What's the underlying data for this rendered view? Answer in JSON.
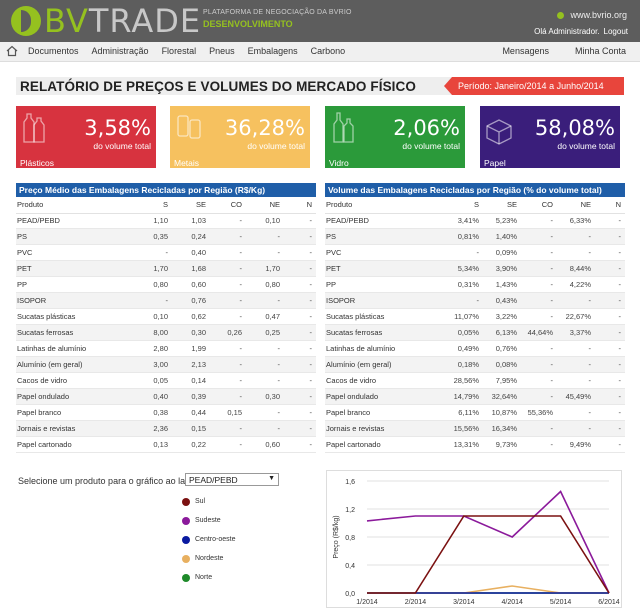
{
  "header": {
    "logo_bv": "BV",
    "logo_trade": "TRADE",
    "tagline": "PLATAFORMA DE NEGOCIAÇÃO DA BVRIO",
    "environment": "DESENVOLVIMENTO",
    "site": "www.bvrio.org",
    "greeting": "Olá Administrador.",
    "logout": "Logout"
  },
  "nav": {
    "items": [
      "Documentos",
      "Administração",
      "Florestal",
      "Pneus",
      "Embalagens",
      "Carbono"
    ],
    "right": [
      "Mensagens",
      "Minha Conta"
    ]
  },
  "report": {
    "title": "RELATÓRIO DE PREÇOS E VOLUMES DO MERCADO FÍSICO",
    "period": "Período: Janeiro/2014 a Junho/2014"
  },
  "cards": [
    {
      "pct": "3,58%",
      "sub": "do volume total",
      "name": "Plásticos",
      "color": "#d7333f",
      "icon": "bottles-icon"
    },
    {
      "pct": "36,28%",
      "sub": "do volume total",
      "name": "Metais",
      "color": "#f6c15f",
      "icon": "cans-icon"
    },
    {
      "pct": "2,06%",
      "sub": "do volume total",
      "name": "Vidro",
      "color": "#2b9a3a",
      "icon": "glass-bottles-icon"
    },
    {
      "pct": "58,08%",
      "sub": "do volume total",
      "name": "Papel",
      "color": "#3a1e7b",
      "icon": "paper-box-icon"
    }
  ],
  "price_table": {
    "title": "Preço Médio das Embalagens Recicladas por Região (R$/Kg)",
    "headers": [
      "Produto",
      "S",
      "SE",
      "CO",
      "NE",
      "N"
    ],
    "rows": [
      [
        "PEAD/PEBD",
        "1,10",
        "1,03",
        "-",
        "0,10",
        "-"
      ],
      [
        "PS",
        "0,35",
        "0,24",
        "-",
        "-",
        "-"
      ],
      [
        "PVC",
        "-",
        "0,40",
        "-",
        "-",
        "-"
      ],
      [
        "PET",
        "1,70",
        "1,68",
        "-",
        "1,70",
        "-"
      ],
      [
        "PP",
        "0,80",
        "0,60",
        "-",
        "0,80",
        "-"
      ],
      [
        "ISOPOR",
        "-",
        "0,76",
        "-",
        "-",
        "-"
      ],
      [
        "Sucatas plásticas",
        "0,10",
        "0,62",
        "-",
        "0,47",
        "-"
      ],
      [
        "Sucatas ferrosas",
        "8,00",
        "0,30",
        "0,26",
        "0,25",
        "-"
      ],
      [
        "Latinhas de alumínio",
        "2,80",
        "1,99",
        "-",
        "-",
        "-"
      ],
      [
        "Alumínio (em geral)",
        "3,00",
        "2,13",
        "-",
        "-",
        "-"
      ],
      [
        "Cacos de vidro",
        "0,05",
        "0,14",
        "-",
        "-",
        "-"
      ],
      [
        "Papel ondulado",
        "0,40",
        "0,39",
        "-",
        "0,30",
        "-"
      ],
      [
        "Papel branco",
        "0,38",
        "0,44",
        "0,15",
        "-",
        "-"
      ],
      [
        "Jornais e revistas",
        "2,36",
        "0,15",
        "-",
        "-",
        "-"
      ],
      [
        "Papel cartonado",
        "0,13",
        "0,22",
        "-",
        "0,60",
        "-"
      ]
    ]
  },
  "volume_table": {
    "title": "Volume das Embalagens Recicladas por Região (% do volume total)",
    "headers": [
      "Produto",
      "S",
      "SE",
      "CO",
      "NE",
      "N"
    ],
    "rows": [
      [
        "PEAD/PEBD",
        "3,41%",
        "5,23%",
        "-",
        "6,33%",
        "-"
      ],
      [
        "PS",
        "0,81%",
        "1,40%",
        "-",
        "-",
        "-"
      ],
      [
        "PVC",
        "-",
        "0,09%",
        "-",
        "-",
        "-"
      ],
      [
        "PET",
        "5,34%",
        "3,90%",
        "-",
        "8,44%",
        "-"
      ],
      [
        "PP",
        "0,31%",
        "1,43%",
        "-",
        "4,22%",
        "-"
      ],
      [
        "ISOPOR",
        "-",
        "0,43%",
        "-",
        "-",
        "-"
      ],
      [
        "Sucatas plásticas",
        "11,07%",
        "3,22%",
        "-",
        "22,67%",
        "-"
      ],
      [
        "Sucatas ferrosas",
        "0,05%",
        "6,13%",
        "44,64%",
        "3,37%",
        "-"
      ],
      [
        "Latinhas de alumínio",
        "0,49%",
        "0,76%",
        "-",
        "-",
        "-"
      ],
      [
        "Alumínio (em geral)",
        "0,18%",
        "0,08%",
        "-",
        "-",
        "-"
      ],
      [
        "Cacos de vidro",
        "28,56%",
        "7,95%",
        "-",
        "-",
        "-"
      ],
      [
        "Papel ondulado",
        "14,79%",
        "32,64%",
        "-",
        "45,49%",
        "-"
      ],
      [
        "Papel branco",
        "6,11%",
        "10,87%",
        "55,36%",
        "-",
        "-"
      ],
      [
        "Jornais e revistas",
        "15,56%",
        "16,34%",
        "-",
        "-",
        "-"
      ],
      [
        "Papel cartonado",
        "13,31%",
        "9,73%",
        "-",
        "9,49%",
        "-"
      ]
    ]
  },
  "selector": {
    "label": "Selecione um produto para o gráfico ao lado:",
    "selected": "PEAD/PEBD"
  },
  "chart_data": {
    "type": "line",
    "x": [
      "1/2014",
      "2/2014",
      "3/2014",
      "4/2014",
      "5/2014",
      "6/2014"
    ],
    "ylabel": "Preço (R$/kg)",
    "ylim": [
      0,
      1.6
    ],
    "yticks": [
      "0,0",
      "0,4",
      "0,8",
      "1,2",
      "1,6"
    ],
    "series": [
      {
        "name": "Sul",
        "color": "#7b1111",
        "values": [
          0,
          0,
          1.1,
          1.1,
          1.1,
          0
        ]
      },
      {
        "name": "Sudeste",
        "color": "#8b1a9b",
        "values": [
          1.03,
          1.1,
          1.1,
          0.8,
          1.45,
          0
        ]
      },
      {
        "name": "Centro-oeste",
        "color": "#0a1aa0",
        "values": [
          0,
          0,
          0,
          0,
          0,
          0
        ]
      },
      {
        "name": "Nordeste",
        "color": "#e8b060",
        "values": [
          0,
          0,
          0,
          0.1,
          0,
          0
        ]
      },
      {
        "name": "Norte",
        "color": "#1e8a2a",
        "values": [
          0,
          0,
          0,
          0,
          0,
          0
        ]
      }
    ],
    "grid": "horizontal",
    "legend": "left"
  }
}
